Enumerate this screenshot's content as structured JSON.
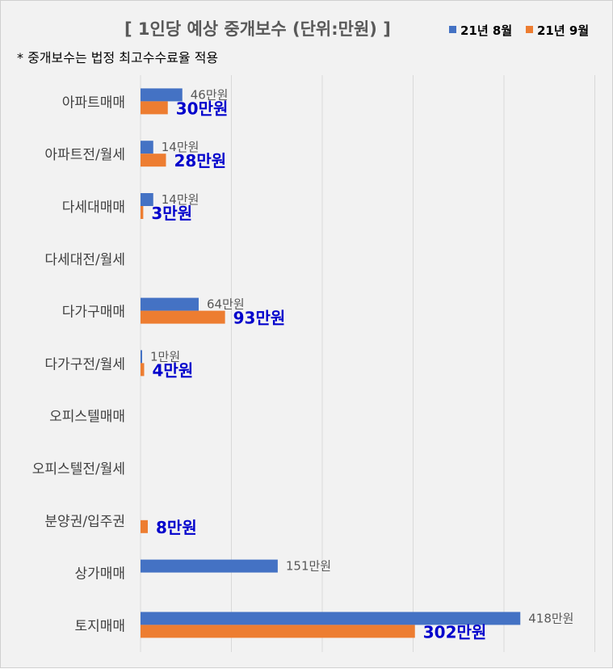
{
  "chart_data": {
    "type": "bar",
    "orientation": "horizontal",
    "title": "[ 1인당 예상 중개보수 (단위:만원) ]",
    "subtitle": "* 중개보수는 법정 최고수수료율 적용",
    "categories": [
      "아파트매매",
      "아파트전/월세",
      "다세대매매",
      "다세대전/월세",
      "다가구매매",
      "다가구전/월세",
      "오피스텔매매",
      "오피스텔전/월세",
      "분양권/입주권",
      "상가매매",
      "토지매매"
    ],
    "series": [
      {
        "name": "21년 8월",
        "color": "#4472c4",
        "values": [
          46,
          14,
          14,
          null,
          64,
          1,
          null,
          null,
          null,
          151,
          418
        ],
        "labels": [
          "46만원",
          "14만원",
          "14만원",
          "",
          "64만원",
          "1만원",
          "",
          "",
          "",
          "151만원",
          "418만원"
        ]
      },
      {
        "name": "21년 9월",
        "color": "#ed7d31",
        "values": [
          30,
          28,
          3,
          null,
          93,
          4,
          null,
          null,
          8,
          null,
          302
        ],
        "labels": [
          "30만원",
          "28만원",
          "3만원",
          "",
          "93만원",
          "4만원",
          "",
          "",
          "8만원",
          "",
          "302만원"
        ]
      }
    ],
    "xlim": [
      0,
      500
    ],
    "grid": true,
    "legend": "top-right",
    "label_colors": {
      "series1": "#595959",
      "series2": "#0000cc"
    }
  }
}
